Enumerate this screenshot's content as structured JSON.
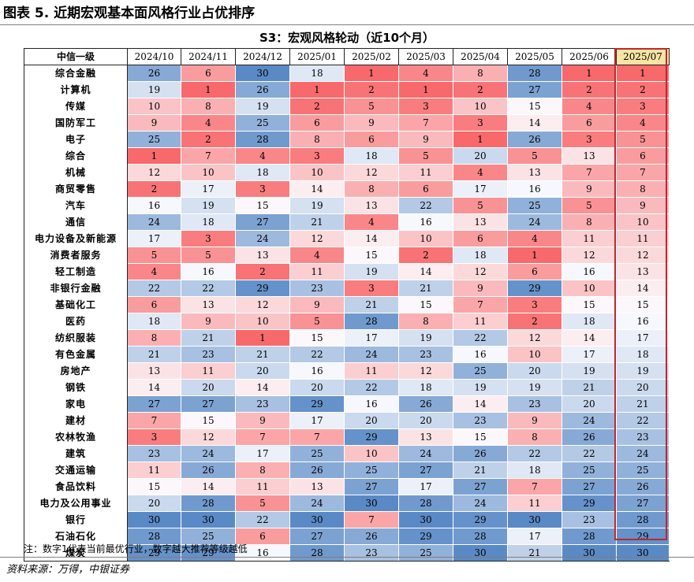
{
  "figure_title": "图表 5. 近期宏观基本面风格行业占优排序",
  "note": "注：数字1代表当前最优行业，数字越大推荐等级越低",
  "source": "资料来源：万得，中银证券",
  "colors": {
    "best": "#f8696b",
    "mid": "#fcfcff",
    "worst": "#5a8ac6",
    "highlight_header": "#f8e4a4",
    "highlight_border": "#c0262e"
  },
  "chart_data": {
    "type": "table",
    "title": "S3：宏观风格轮动（近10个月）",
    "row_header": "中信一级",
    "columns": [
      "2024/10",
      "2024/11",
      "2024/12",
      "2025/01",
      "2025/02",
      "2025/03",
      "2025/04",
      "2025/05",
      "2025/06",
      "2025/07"
    ],
    "highlight_column": "2025/07",
    "value_range": [
      1,
      30
    ],
    "rows": [
      {
        "name": "综合金融",
        "values": [
          26,
          6,
          30,
          18,
          1,
          4,
          8,
          28,
          1,
          1
        ]
      },
      {
        "name": "计算机",
        "values": [
          19,
          1,
          26,
          1,
          2,
          1,
          2,
          27,
          2,
          2
        ]
      },
      {
        "name": "传媒",
        "values": [
          10,
          8,
          19,
          2,
          5,
          3,
          10,
          15,
          4,
          3
        ]
      },
      {
        "name": "国防军工",
        "values": [
          9,
          4,
          25,
          6,
          9,
          7,
          3,
          14,
          6,
          4
        ]
      },
      {
        "name": "电子",
        "values": [
          25,
          2,
          28,
          8,
          6,
          9,
          1,
          26,
          3,
          5
        ]
      },
      {
        "name": "综合",
        "values": [
          1,
          7,
          4,
          3,
          18,
          5,
          20,
          5,
          13,
          6
        ]
      },
      {
        "name": "机械",
        "values": [
          12,
          10,
          18,
          10,
          12,
          11,
          4,
          13,
          7,
          7
        ]
      },
      {
        "name": "商贸零售",
        "values": [
          2,
          17,
          3,
          14,
          8,
          6,
          17,
          16,
          9,
          8
        ]
      },
      {
        "name": "汽车",
        "values": [
          16,
          19,
          15,
          19,
          13,
          22,
          5,
          25,
          5,
          9
        ]
      },
      {
        "name": "通信",
        "values": [
          24,
          18,
          27,
          21,
          4,
          16,
          13,
          24,
          8,
          10
        ]
      },
      {
        "name": "电力设备及新能源",
        "values": [
          17,
          3,
          24,
          12,
          14,
          10,
          6,
          4,
          11,
          11
        ]
      },
      {
        "name": "消费者服务",
        "values": [
          5,
          5,
          13,
          4,
          15,
          2,
          18,
          1,
          12,
          12
        ]
      },
      {
        "name": "轻工制造",
        "values": [
          4,
          16,
          2,
          11,
          19,
          14,
          12,
          6,
          16,
          13
        ]
      },
      {
        "name": "非银行金融",
        "values": [
          22,
          22,
          29,
          23,
          3,
          21,
          9,
          29,
          10,
          14
        ]
      },
      {
        "name": "基础化工",
        "values": [
          6,
          13,
          12,
          9,
          21,
          15,
          7,
          3,
          15,
          15
        ]
      },
      {
        "name": "医药",
        "values": [
          18,
          9,
          10,
          5,
          28,
          8,
          11,
          2,
          18,
          16
        ]
      },
      {
        "name": "纺织服装",
        "values": [
          8,
          21,
          1,
          15,
          17,
          19,
          22,
          12,
          14,
          17
        ]
      },
      {
        "name": "有色金属",
        "values": [
          21,
          23,
          21,
          22,
          24,
          23,
          16,
          10,
          17,
          18
        ]
      },
      {
        "name": "房地产",
        "values": [
          13,
          11,
          20,
          16,
          11,
          12,
          25,
          20,
          19,
          19
        ]
      },
      {
        "name": "钢铁",
        "values": [
          14,
          20,
          14,
          20,
          22,
          18,
          19,
          19,
          21,
          20
        ]
      },
      {
        "name": "家电",
        "values": [
          27,
          27,
          23,
          29,
          16,
          26,
          14,
          23,
          20,
          21
        ]
      },
      {
        "name": "建材",
        "values": [
          7,
          15,
          9,
          17,
          20,
          20,
          23,
          9,
          24,
          22
        ]
      },
      {
        "name": "农林牧渔",
        "values": [
          3,
          12,
          7,
          7,
          29,
          13,
          15,
          8,
          26,
          23
        ]
      },
      {
        "name": "建筑",
        "values": [
          23,
          24,
          17,
          25,
          10,
          24,
          26,
          22,
          22,
          24
        ]
      },
      {
        "name": "交通运输",
        "values": [
          11,
          26,
          8,
          26,
          25,
          27,
          21,
          18,
          25,
          25
        ]
      },
      {
        "name": "食品饮料",
        "values": [
          15,
          14,
          11,
          13,
          27,
          17,
          27,
          7,
          27,
          26
        ]
      },
      {
        "name": "电力及公用事业",
        "values": [
          20,
          28,
          5,
          24,
          30,
          28,
          24,
          11,
          29,
          27
        ]
      },
      {
        "name": "银行",
        "values": [
          30,
          30,
          22,
          30,
          7,
          30,
          29,
          30,
          23,
          28
        ]
      },
      {
        "name": "石油石化",
        "values": [
          28,
          25,
          6,
          27,
          26,
          29,
          28,
          17,
          28,
          29
        ]
      },
      {
        "name": "煤炭",
        "values": [
          29,
          29,
          16,
          28,
          23,
          25,
          30,
          21,
          30,
          30
        ]
      }
    ]
  }
}
